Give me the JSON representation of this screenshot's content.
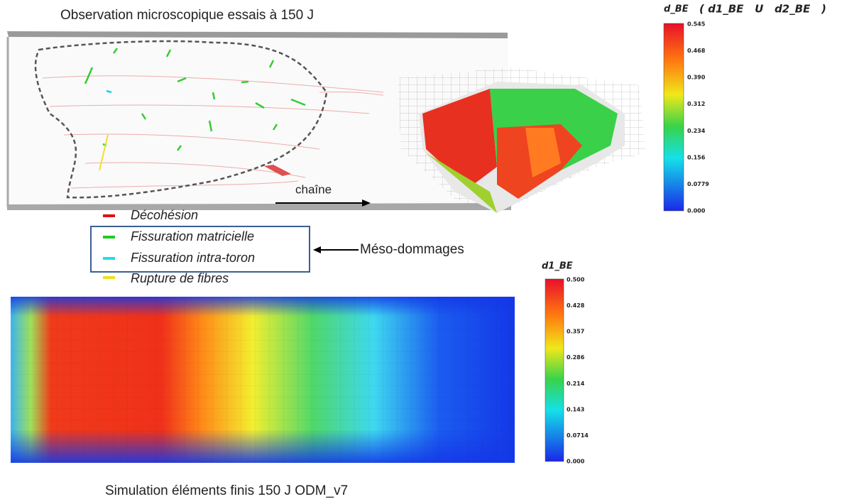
{
  "title": "Observation microscopique essais à 150 J",
  "micrograph": {
    "direction_label": "chaîne"
  },
  "legend": {
    "items": [
      "Décohésion",
      "Fissuration matricielle",
      "Fissuration intra-toron",
      "Rupture de fibres"
    ],
    "group_label": "Méso-dommages"
  },
  "colorbar_top": {
    "label": "d_BE",
    "sublabel": "( d1_BE   U   d2_BE   )",
    "ticks": [
      "0.545",
      "0.468",
      "0.390",
      "0.312",
      "0.234",
      "0.156",
      "0.0779",
      "0.000"
    ]
  },
  "colorbar_bottom": {
    "label": "d1_BE",
    "ticks": [
      "0.500",
      "0.428",
      "0.357",
      "0.286",
      "0.214",
      "0.143",
      "0.0714",
      "0.000"
    ]
  },
  "caption": "Simulation éléments finis 150 J ODM_v7"
}
